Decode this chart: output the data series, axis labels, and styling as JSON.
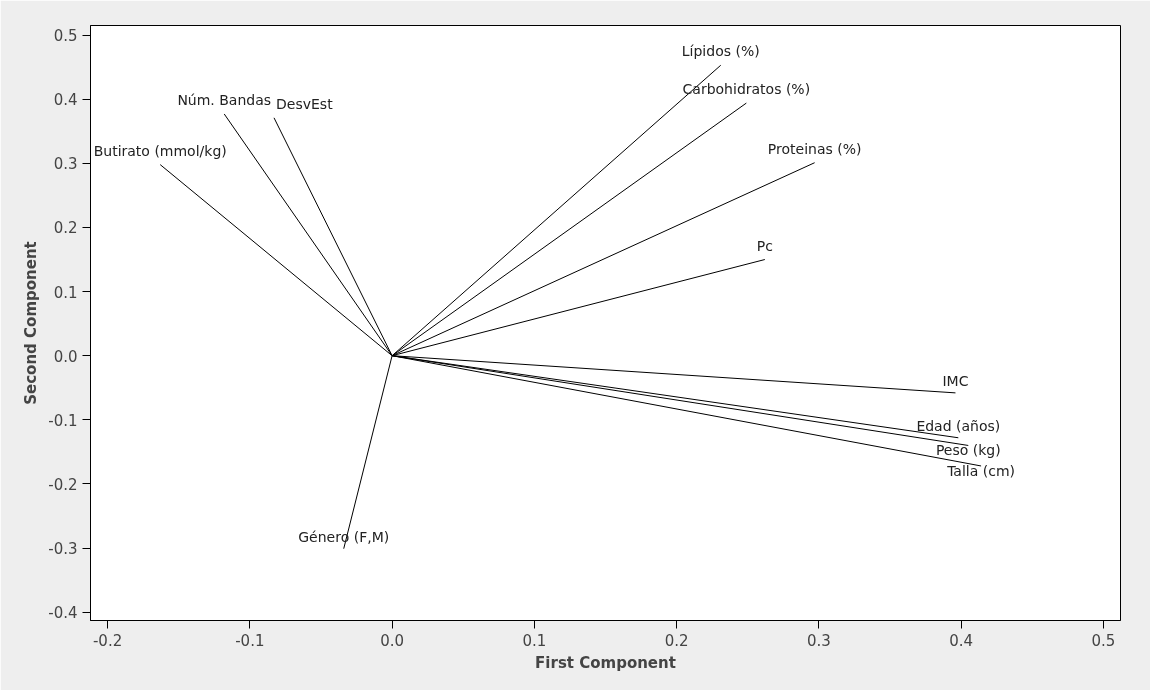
{
  "chart_data": {
    "type": "line",
    "xlabel": "First Component",
    "ylabel": "Second Component",
    "xlim": [
      -0.212,
      0.512
    ],
    "ylim": [
      -0.413,
      0.515
    ],
    "xticks": [
      {
        "value": -0.2,
        "label": "-0.2"
      },
      {
        "value": -0.1,
        "label": "-0.1"
      },
      {
        "value": 0,
        "label": "0.0"
      },
      {
        "value": 0.1,
        "label": "0.1"
      },
      {
        "value": 0.2,
        "label": "0.2"
      },
      {
        "value": 0.3,
        "label": "0.3"
      },
      {
        "value": 0.4,
        "label": "0.4"
      },
      {
        "value": 0.5,
        "label": "0.5"
      }
    ],
    "yticks": [
      {
        "value": -0.4,
        "label": "-0.4"
      },
      {
        "value": -0.3,
        "label": "-0.3"
      },
      {
        "value": -0.2,
        "label": "-0.2"
      },
      {
        "value": -0.1,
        "label": "-0.1"
      },
      {
        "value": 0,
        "label": "0.0"
      },
      {
        "value": 0.1,
        "label": "0.1"
      },
      {
        "value": 0.2,
        "label": "0.2"
      },
      {
        "value": 0.3,
        "label": "0.3"
      },
      {
        "value": 0.4,
        "label": "0.4"
      },
      {
        "value": 0.5,
        "label": "0.5"
      }
    ],
    "grid": false,
    "legend": false,
    "marker": "none",
    "line_style": "solid",
    "series": [
      {
        "name": "Butirato (mmol/kg)",
        "color": "#000000",
        "x": [
          0,
          -0.163
        ],
        "values": [
          0,
          0.298
        ]
      },
      {
        "name": "Núm. Bandas",
        "color": "#000000",
        "x": [
          0,
          -0.118
        ],
        "values": [
          0,
          0.377
        ]
      },
      {
        "name": "DesvEst",
        "color": "#000000",
        "x": [
          0,
          -0.083
        ],
        "values": [
          0,
          0.371
        ]
      },
      {
        "name": "Género (F,M)",
        "color": "#000000",
        "x": [
          0,
          -0.034
        ],
        "values": [
          0,
          -0.301
        ]
      },
      {
        "name": "Lípidos (%)",
        "color": "#000000",
        "x": [
          0,
          0.231
        ],
        "values": [
          0,
          0.453
        ]
      },
      {
        "name": "Carbohidratos (%)",
        "color": "#000000",
        "x": [
          0,
          0.249
        ],
        "values": [
          0,
          0.394
        ]
      },
      {
        "name": "Proteinas (%)",
        "color": "#000000",
        "x": [
          0,
          0.297
        ],
        "values": [
          0,
          0.301
        ]
      },
      {
        "name": "Pc",
        "color": "#000000",
        "x": [
          0,
          0.262
        ],
        "values": [
          0,
          0.15
        ]
      },
      {
        "name": "IMC",
        "color": "#000000",
        "x": [
          0,
          0.396
        ],
        "values": [
          0,
          -0.058
        ]
      },
      {
        "name": "Edad (años)",
        "color": "#000000",
        "x": [
          0,
          0.398
        ],
        "values": [
          0,
          -0.128
        ]
      },
      {
        "name": "Peso (kg)",
        "color": "#000000",
        "x": [
          0,
          0.405
        ],
        "values": [
          0,
          -0.14
        ]
      },
      {
        "name": "Talla (cm)",
        "color": "#000000",
        "x": [
          0,
          0.414
        ],
        "values": [
          0,
          -0.172
        ]
      }
    ]
  }
}
